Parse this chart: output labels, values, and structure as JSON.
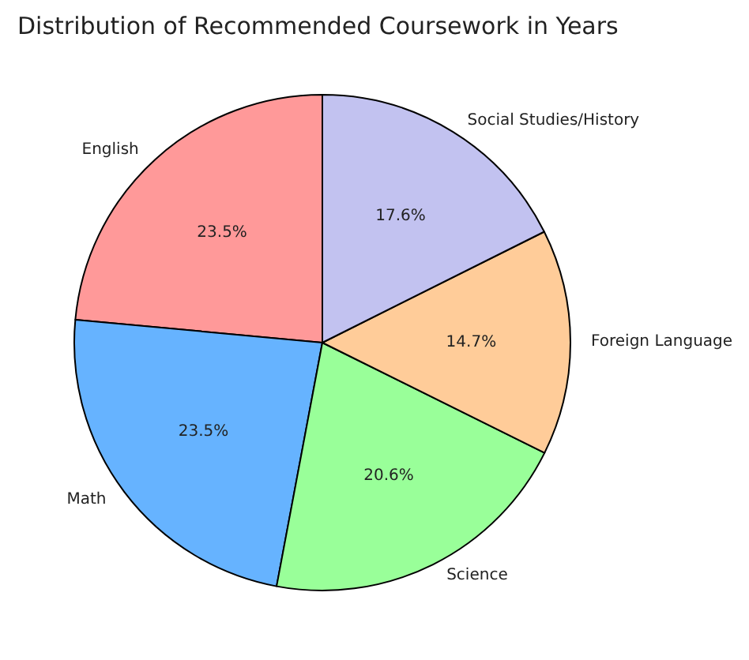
{
  "chart_data": {
    "type": "pie",
    "title": "Distribution of Recommended Coursework in Years",
    "categories": [
      "English",
      "Math",
      "Science",
      "Foreign Language",
      "Social Studies/History"
    ],
    "values": [
      23.5,
      23.5,
      20.6,
      14.7,
      17.6
    ],
    "colors": [
      "#ff9999",
      "#66b3ff",
      "#99ff99",
      "#ffcc99",
      "#c2c2f0"
    ],
    "value_labels": [
      "23.5%",
      "23.5%",
      "20.6%",
      "14.7%",
      "17.6%"
    ]
  }
}
